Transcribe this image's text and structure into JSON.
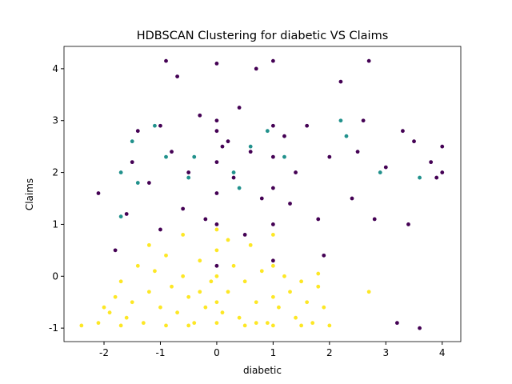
{
  "chart_data": {
    "type": "scatter",
    "title": "HDBSCAN Clustering for diabetic VS Claims",
    "x_label": "diabetic",
    "y_label": "Claims",
    "xlim": [
      -2.71,
      4.33
    ],
    "ylim": [
      -1.26,
      4.43
    ],
    "xticks": [
      -2,
      -1,
      0,
      1,
      2,
      3,
      4
    ],
    "yticks": [
      -1,
      0,
      1,
      2,
      3,
      4
    ],
    "series": [
      {
        "color": "#440154",
        "x": [
          -2.1,
          -1.8,
          -1.6,
          -1.5,
          -1.4,
          -1.2,
          -1.0,
          -1.0,
          -0.8,
          -0.7,
          -0.6,
          -0.5,
          -0.3,
          -0.2,
          0,
          0,
          0,
          0,
          0,
          0,
          0,
          0.2,
          0.3,
          0.4,
          0.5,
          0.6,
          0.7,
          0.8,
          1,
          1,
          1,
          1,
          1,
          1,
          1.2,
          1.3,
          1.4,
          1.6,
          1.8,
          1.9,
          2.0,
          2.2,
          2.4,
          2.5,
          2.6,
          2.7,
          2.8,
          3.0,
          3.2,
          3.3,
          3.4,
          3.5,
          3.6,
          3.8,
          4.0,
          4.0,
          3.9,
          -0.9,
          0.1
        ],
        "values": [
          1.6,
          0.5,
          1.2,
          2.2,
          2.8,
          1.8,
          2.9,
          0.9,
          2.4,
          3.85,
          1.3,
          2.0,
          3.1,
          1.1,
          0.2,
          1.0,
          1.6,
          2.2,
          2.8,
          3.0,
          4.1,
          2.6,
          1.9,
          3.25,
          0.8,
          2.4,
          4.0,
          1.5,
          0.3,
          1.0,
          1.7,
          2.3,
          2.9,
          4.15,
          2.7,
          1.4,
          2.0,
          2.9,
          1.1,
          0.4,
          2.3,
          3.75,
          1.5,
          2.4,
          3.0,
          4.15,
          1.1,
          2.1,
          -0.9,
          2.8,
          1.0,
          2.6,
          -1.0,
          2.2,
          2.5,
          2.0,
          1.9,
          4.15,
          2.5
        ]
      },
      {
        "color": "#21918c",
        "x": [
          -1.7,
          -1.5,
          -1.4,
          -1.1,
          -0.9,
          -0.5,
          -0.4,
          0.3,
          0.6,
          0.9,
          1.2,
          2.2,
          2.3,
          2.9,
          3.6,
          -1.7,
          0.4
        ],
        "values": [
          2.0,
          2.6,
          1.8,
          2.9,
          2.3,
          1.9,
          2.3,
          2.0,
          2.5,
          2.8,
          2.3,
          3.0,
          2.7,
          2.0,
          1.9,
          1.15,
          1.7
        ]
      },
      {
        "color": "#fde725",
        "x": [
          -2.4,
          -2.1,
          -1.9,
          -1.8,
          -1.7,
          -1.6,
          -1.5,
          -1.4,
          -1.3,
          -1.2,
          -1.1,
          -1.0,
          -0.9,
          -0.9,
          -0.8,
          -0.7,
          -0.6,
          -0.5,
          -0.4,
          -0.3,
          -0.2,
          -0.1,
          0,
          0,
          0,
          0,
          0,
          0.1,
          0.2,
          0.3,
          0.4,
          0.5,
          0.6,
          0.7,
          0.8,
          0.9,
          1,
          1,
          1,
          1,
          1.1,
          1.2,
          1.3,
          1.4,
          1.5,
          1.6,
          1.7,
          1.8,
          1.9,
          2.0,
          -1.7,
          -0.5,
          0.5,
          1.5,
          -1.2,
          -0.6,
          0.2,
          -0.3,
          0.7,
          1.8,
          2.7,
          -2.0
        ],
        "values": [
          -0.95,
          -0.9,
          -0.7,
          -0.4,
          -0.1,
          -0.8,
          -0.5,
          0.2,
          -0.9,
          -0.3,
          0.1,
          -0.6,
          -0.95,
          0.4,
          -0.2,
          -0.7,
          0.0,
          -0.4,
          -0.9,
          0.3,
          -0.6,
          -0.1,
          -0.9,
          -0.5,
          0,
          0.5,
          0.9,
          -0.7,
          -0.3,
          0.2,
          -0.8,
          -0.1,
          0.6,
          -0.5,
          0.1,
          -0.9,
          -0.95,
          -0.4,
          0.2,
          0.8,
          -0.6,
          0.0,
          -0.3,
          -0.8,
          -0.1,
          -0.5,
          -0.9,
          -0.2,
          -0.6,
          -0.95,
          -0.95,
          -0.95,
          -0.95,
          -0.95,
          0.6,
          0.8,
          0.7,
          -0.3,
          -0.9,
          0.05,
          -0.3,
          -0.6
        ]
      }
    ]
  }
}
